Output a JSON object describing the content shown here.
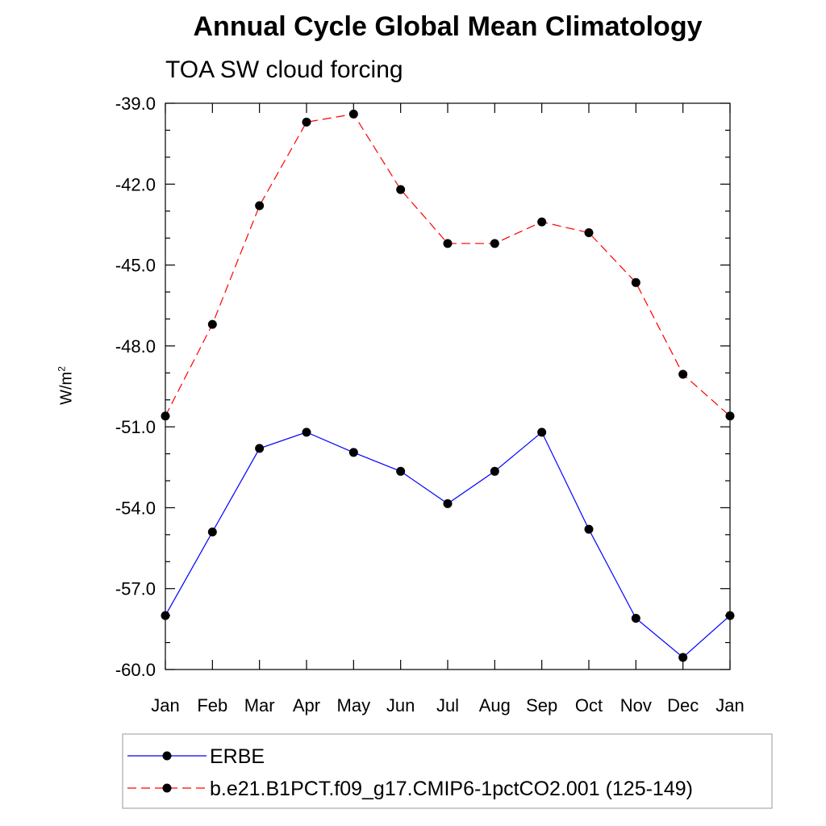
{
  "chart_data": {
    "type": "line",
    "title": "Annual Cycle Global Mean Climatology",
    "subtitle": "TOA SW cloud forcing",
    "ylabel_base": "W/m",
    "ylabel_sup": "2",
    "categories": [
      "Jan",
      "Feb",
      "Mar",
      "Apr",
      "May",
      "Jun",
      "Jul",
      "Aug",
      "Sep",
      "Oct",
      "Nov",
      "Dec",
      "Jan"
    ],
    "ylim": [
      -60,
      -39
    ],
    "yticks": [
      -39,
      -42,
      -45,
      -48,
      -51,
      -54,
      -57,
      -60
    ],
    "ytick_labels": [
      "-39.0",
      "-42.0",
      "-45.0",
      "-48.0",
      "-51.0",
      "-54.0",
      "-57.0",
      "-60.0"
    ],
    "grid": false,
    "legend_position": "bottom",
    "series": [
      {
        "name": "ERBE",
        "color": "#0000ff",
        "style": "solid",
        "marker": "circle",
        "values": [
          -58.0,
          -54.9,
          -51.8,
          -51.2,
          -51.95,
          -52.65,
          -53.85,
          -52.65,
          -51.2,
          -54.8,
          -58.1,
          -59.55,
          -58.0
        ]
      },
      {
        "name": "b.e21.B1PCT.f09_g17.CMIP6-1pctCO2.001 (125-149)",
        "color": "#ff0000",
        "style": "dashed",
        "marker": "circle",
        "values": [
          -50.6,
          -47.2,
          -42.8,
          -39.7,
          -39.4,
          -42.2,
          -44.2,
          -44.2,
          -43.4,
          -43.8,
          -45.65,
          -49.05,
          -50.6
        ]
      }
    ]
  }
}
